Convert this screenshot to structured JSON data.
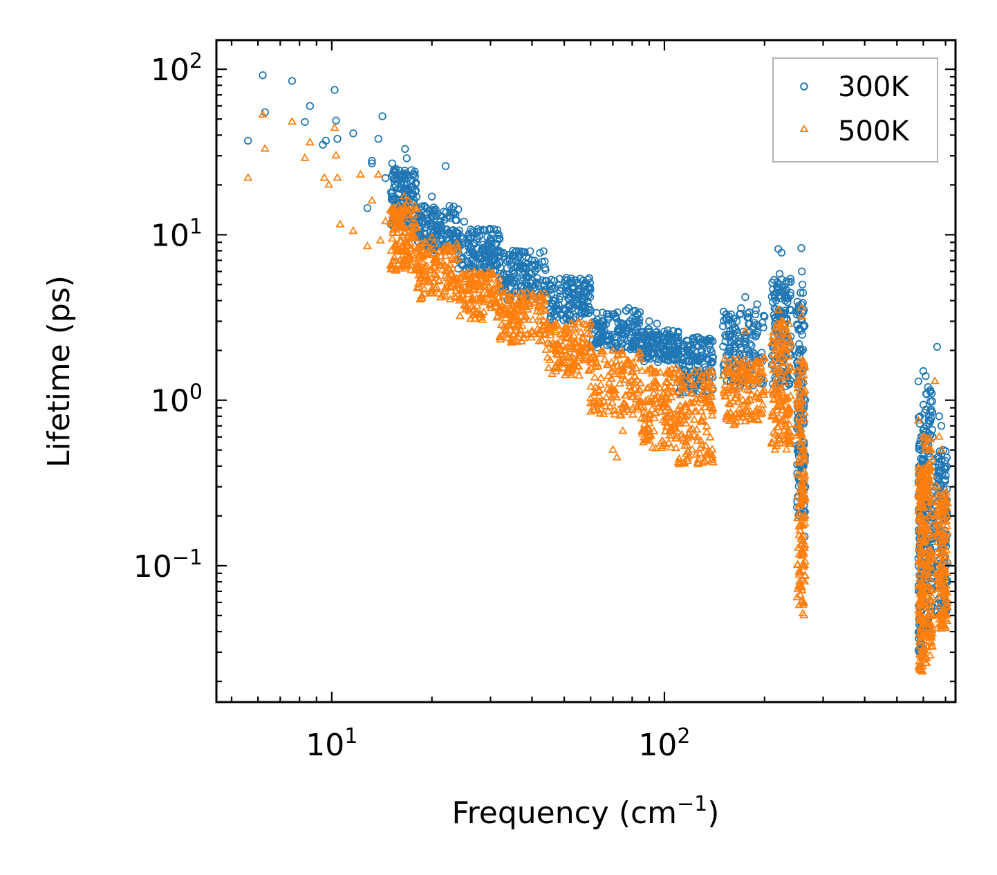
{
  "chart_data": {
    "type": "scatter",
    "xscale": "log",
    "yscale": "log",
    "xlim": [
      4.5,
      750
    ],
    "ylim": [
      0.015,
      150
    ],
    "xlabel_base": "Frequency (cm",
    "xlabel_exp": "−1",
    "xlabel_close": ")",
    "ylabel": "Lifetime (ps)",
    "x_ticks": [
      {
        "value": 10,
        "base": "10",
        "exp": "1"
      },
      {
        "value": 100,
        "base": "10",
        "exp": "2"
      }
    ],
    "y_ticks": [
      {
        "value": 100,
        "base": "10",
        "exp": "2"
      },
      {
        "value": 10,
        "base": "10",
        "exp": "1"
      },
      {
        "value": 1,
        "base": "10",
        "exp": "0"
      },
      {
        "value": 0.1,
        "base": "10",
        "exp": "−1"
      }
    ],
    "legend": {
      "position": "top-right"
    },
    "series": [
      {
        "name": "300K",
        "marker": "circle",
        "color": "#1f77b4",
        "points": [
          [
            5.6,
            37
          ],
          [
            6.2,
            92
          ],
          [
            6.3,
            55
          ],
          [
            7.6,
            85
          ],
          [
            8.3,
            48
          ],
          [
            8.6,
            60
          ],
          [
            9.4,
            35
          ],
          [
            9.6,
            37
          ],
          [
            10.2,
            75
          ],
          [
            10.3,
            49
          ],
          [
            10.4,
            38
          ],
          [
            11.6,
            41
          ],
          [
            12.8,
            14.5
          ],
          [
            13.2,
            28
          ],
          [
            13.2,
            27
          ],
          [
            13.8,
            38
          ],
          [
            14.2,
            52
          ],
          [
            14.5,
            22
          ],
          [
            15.2,
            27
          ],
          [
            15.6,
            25
          ],
          [
            16.6,
            33
          ],
          [
            16.8,
            29
          ],
          [
            19,
            11
          ],
          [
            20,
            17
          ],
          [
            22,
            26
          ],
          [
            25,
            12
          ],
          [
            30,
            9.5
          ],
          [
            35,
            8
          ],
          [
            40,
            7
          ],
          [
            48,
            5
          ],
          [
            60,
            3.5
          ],
          [
            70,
            3.3
          ],
          [
            78,
            3.6
          ],
          [
            90,
            3
          ],
          [
            95,
            2.9
          ],
          [
            100,
            2.6
          ],
          [
            110,
            2.6
          ],
          [
            125,
            2.4
          ],
          [
            135,
            2.3
          ],
          [
            150,
            2.8
          ],
          [
            165,
            3
          ],
          [
            170,
            3.6
          ],
          [
            175,
            4.2
          ],
          [
            180,
            3.4
          ],
          [
            190,
            3.8
          ],
          [
            200,
            3.2
          ],
          [
            215,
            4.3
          ],
          [
            220,
            8.2
          ],
          [
            222,
            5.8
          ],
          [
            225,
            7.8
          ],
          [
            235,
            1.5
          ],
          [
            240,
            3.5
          ],
          [
            250,
            3.3
          ],
          [
            258,
            8.3
          ],
          [
            259,
            6
          ],
          [
            260,
            5
          ],
          [
            261,
            1.1
          ],
          [
            262,
            0.4
          ],
          [
            263,
            0.2
          ],
          [
            264,
            0.15
          ],
          [
            265,
            0.3
          ],
          [
            580,
            1.3
          ],
          [
            590,
            0.5
          ],
          [
            600,
            1.5
          ],
          [
            610,
            1.4
          ],
          [
            620,
            1.2
          ],
          [
            640,
            0.6
          ],
          [
            660,
            2.1
          ],
          [
            670,
            0.8
          ],
          [
            680,
            0.7
          ],
          [
            690,
            0.5
          ],
          [
            700,
            0.2
          ]
        ],
        "bands": [
          {
            "x": [
              15,
              18
            ],
            "y": [
              11,
              25
            ]
          },
          {
            "x": [
              18,
              24
            ],
            "y": [
              8,
              15
            ]
          },
          {
            "x": [
              24,
              32
            ],
            "y": [
              6,
              11
            ]
          },
          {
            "x": [
              32,
              44
            ],
            "y": [
              4,
              8
            ]
          },
          {
            "x": [
              44,
              60
            ],
            "y": [
              3,
              5.5
            ]
          },
          {
            "x": [
              60,
              85
            ],
            "y": [
              2,
              3.5
            ]
          },
          {
            "x": [
              85,
              110
            ],
            "y": [
              1.7,
              2.7
            ]
          },
          {
            "x": [
              110,
              140
            ],
            "y": [
              1.1,
              2.4
            ]
          },
          {
            "x": [
              150,
              200
            ],
            "y": [
              1.2,
              3.5
            ]
          },
          {
            "x": [
              210,
              240
            ],
            "y": [
              1.2,
              5.5
            ]
          },
          {
            "x": [
              250,
              265
            ],
            "y": [
              0.2,
              4.5
            ]
          },
          {
            "x": [
              580,
              600
            ],
            "y": [
              0.03,
              0.8
            ]
          },
          {
            "x": [
              600,
              640
            ],
            "y": [
              0.04,
              1.2
            ]
          },
          {
            "x": [
              660,
              710
            ],
            "y": [
              0.05,
              0.5
            ]
          }
        ]
      },
      {
        "name": "500K",
        "marker": "triangle",
        "color": "#ff7f0e",
        "points": [
          [
            5.6,
            22
          ],
          [
            6.2,
            53
          ],
          [
            6.3,
            33
          ],
          [
            7.6,
            48
          ],
          [
            8.3,
            29
          ],
          [
            8.6,
            36
          ],
          [
            9.5,
            22
          ],
          [
            9.8,
            20
          ],
          [
            10.2,
            44
          ],
          [
            10.3,
            30
          ],
          [
            10.4,
            22
          ],
          [
            10.6,
            11.5
          ],
          [
            11.6,
            10.5
          ],
          [
            12.2,
            23
          ],
          [
            12.8,
            8.5
          ],
          [
            13.2,
            16
          ],
          [
            13.8,
            23
          ],
          [
            14,
            9.2
          ],
          [
            14.5,
            12
          ],
          [
            15,
            14
          ],
          [
            15.5,
            14
          ],
          [
            16.5,
            17
          ],
          [
            17,
            16
          ],
          [
            18,
            11
          ],
          [
            20,
            9.6
          ],
          [
            22,
            6
          ],
          [
            25,
            4
          ],
          [
            30,
            3.8
          ],
          [
            35,
            3
          ],
          [
            42,
            2.5
          ],
          [
            50,
            2
          ],
          [
            60,
            1.8
          ],
          [
            70,
            0.5
          ],
          [
            72,
            0.45
          ],
          [
            75,
            0.65
          ],
          [
            80,
            1.5
          ],
          [
            90,
            0.6
          ],
          [
            110,
            0.42
          ],
          [
            120,
            1.1
          ],
          [
            140,
            0.42
          ],
          [
            150,
            1.4
          ],
          [
            155,
            1.7
          ],
          [
            160,
            0.8
          ],
          [
            170,
            1.6
          ],
          [
            175,
            2.6
          ],
          [
            180,
            1.3
          ],
          [
            190,
            1.1
          ],
          [
            200,
            1.8
          ],
          [
            215,
            0.5
          ],
          [
            220,
            3.5
          ],
          [
            225,
            3
          ],
          [
            230,
            1
          ],
          [
            240,
            2.2
          ],
          [
            258,
            3.6
          ],
          [
            259,
            3.2
          ],
          [
            260,
            1.5
          ],
          [
            261,
            0.3
          ],
          [
            262,
            0.12
          ],
          [
            263,
            0.05
          ],
          [
            264,
            0.08
          ],
          [
            265,
            0.2
          ],
          [
            580,
            0.75
          ],
          [
            590,
            0.3
          ],
          [
            600,
            0.6
          ],
          [
            610,
            0.5
          ],
          [
            620,
            0.3
          ],
          [
            650,
            1.3
          ],
          [
            660,
            0.3
          ],
          [
            670,
            0.6
          ],
          [
            680,
            0.5
          ],
          [
            690,
            0.2
          ],
          [
            700,
            0.07
          ]
        ],
        "bands": [
          {
            "x": [
              15,
              18
            ],
            "y": [
              6,
              15
            ]
          },
          {
            "x": [
              18,
              24
            ],
            "y": [
              4,
              9
            ]
          },
          {
            "x": [
              24,
              32
            ],
            "y": [
              3,
              6
            ]
          },
          {
            "x": [
              32,
              44
            ],
            "y": [
              2.2,
              4.5
            ]
          },
          {
            "x": [
              44,
              60
            ],
            "y": [
              1.4,
              3
            ]
          },
          {
            "x": [
              60,
              85
            ],
            "y": [
              0.8,
              2
            ]
          },
          {
            "x": [
              85,
              110
            ],
            "y": [
              0.5,
              1.6
            ]
          },
          {
            "x": [
              110,
              140
            ],
            "y": [
              0.4,
              1.5
            ]
          },
          {
            "x": [
              150,
              200
            ],
            "y": [
              0.7,
              1.8
            ]
          },
          {
            "x": [
              210,
              240
            ],
            "y": [
              0.5,
              3
            ]
          },
          {
            "x": [
              250,
              265
            ],
            "y": [
              0.05,
              2
            ]
          },
          {
            "x": [
              580,
              600
            ],
            "y": [
              0.022,
              0.4
            ]
          },
          {
            "x": [
              600,
              640
            ],
            "y": [
              0.025,
              0.6
            ]
          },
          {
            "x": [
              660,
              710
            ],
            "y": [
              0.04,
              0.3
            ]
          }
        ]
      }
    ]
  }
}
